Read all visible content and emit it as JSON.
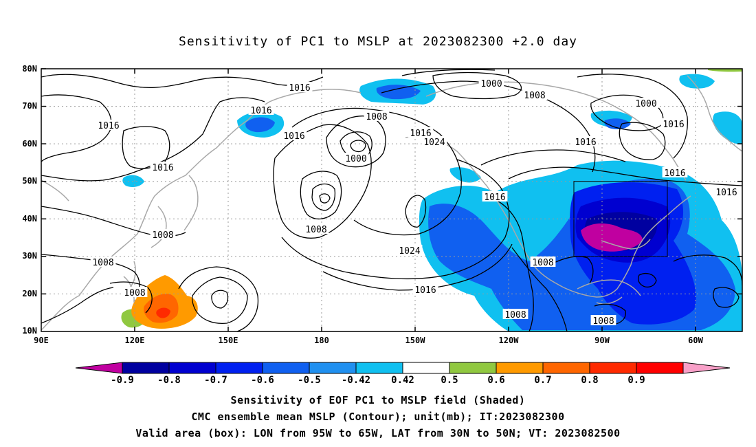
{
  "title": "Sensitivity of PC1 to MSLP at 2023082300 +2.0 day",
  "lat_labels": [
    "80N",
    "70N",
    "60N",
    "50N",
    "40N",
    "30N",
    "20N",
    "10N"
  ],
  "lon_labels": [
    "90E",
    "120E",
    "150E",
    "180",
    "150W",
    "120W",
    "90W",
    "60W"
  ],
  "contour_labels": [
    "1016",
    "1016",
    "1016",
    "1016",
    "1016",
    "1000",
    "1008",
    "1008",
    "1016",
    "1024",
    "1000",
    "1008",
    "1008",
    "1008",
    "1024",
    "1016",
    "1016",
    "1016",
    "1016",
    "1016",
    "1008",
    "1008",
    "1008",
    "1008",
    "1000",
    "1016"
  ],
  "colorbar": {
    "labels": [
      "-0.9",
      "-0.8",
      "-0.7",
      "-0.6",
      "-0.5",
      "-0.42",
      "0.42",
      "0.5",
      "0.6",
      "0.7",
      "0.8",
      "0.9"
    ],
    "colors": [
      "#c000a0",
      "#0000a0",
      "#0000d0",
      "#0020f0",
      "#1060f0",
      "#2090f0",
      "#10c0f0",
      "#ffffff",
      "#90c840",
      "#ff9a00",
      "#ff6600",
      "#ff2a00",
      "#ff0000",
      "#f8a0c8"
    ]
  },
  "captions": [
    "Sensitivity of EOF PC1 to MSLP field (Shaded)",
    "CMC ensemble mean MSLP (Contour); unit(mb); IT:2023082300",
    "Valid area (box): LON from 95W to 65W, LAT from 30N to 50N; VT: 2023082500"
  ]
}
